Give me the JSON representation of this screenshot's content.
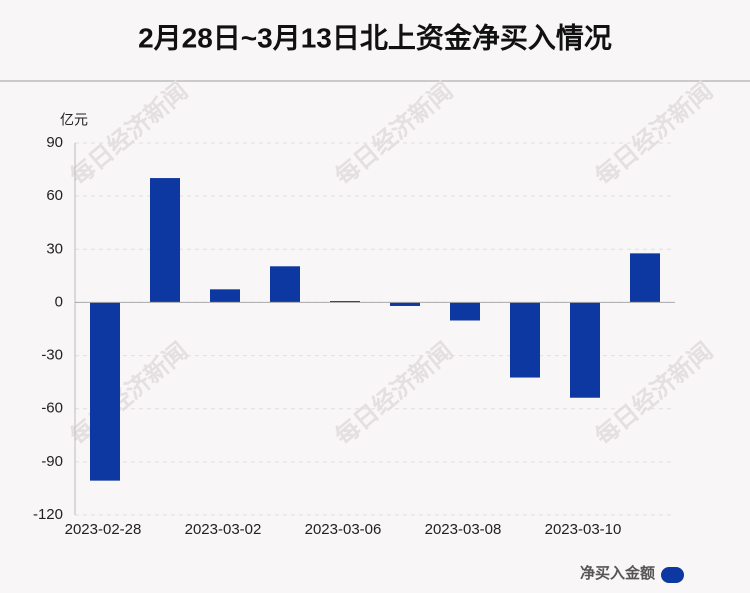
{
  "chart_data": {
    "type": "bar",
    "title": "2月28日~3月13日北上资金净买入情况",
    "y_label": "亿元",
    "watermark": "每日经济新闻",
    "categories": [
      "2023-02-28",
      null,
      "2023-03-02",
      null,
      "2023-03-06",
      null,
      "2023-03-08",
      null,
      "2023-03-10",
      null
    ],
    "series": [
      {
        "name": "净买入金额",
        "color": "#0d37a1",
        "values": [
          -100.6,
          70.2,
          7.4,
          20.4,
          0.8,
          -2.0,
          -10.2,
          -42.4,
          -53.8,
          27.7
        ]
      }
    ],
    "ylim": [
      -120,
      90
    ],
    "yticks": [
      -120,
      -90,
      -60,
      -30,
      0,
      30,
      60,
      90
    ],
    "grid": true
  }
}
